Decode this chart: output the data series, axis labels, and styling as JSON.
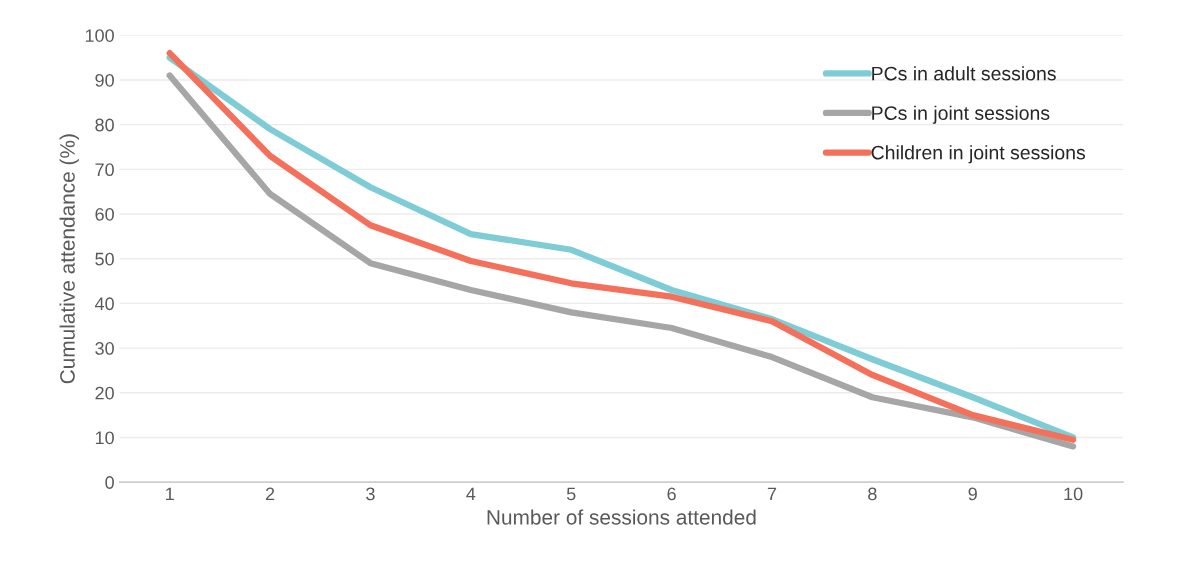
{
  "chart_data": {
    "type": "line",
    "xlabel": "Number of sessions attended",
    "ylabel": "Cumulative attendance (%)",
    "categories": [
      "1",
      "2",
      "3",
      "4",
      "5",
      "6",
      "7",
      "8",
      "9",
      "10"
    ],
    "series": [
      {
        "name": "PCs in adult sessions",
        "color": "#7ecdd6",
        "values": [
          95,
          79,
          66,
          55.5,
          52,
          43,
          36.5,
          27.5,
          19,
          10
        ]
      },
      {
        "name": "PCs in joint sessions",
        "color": "#a6a6a6",
        "values": [
          91,
          64.5,
          49,
          43,
          38,
          34.5,
          28,
          19,
          14.5,
          8
        ]
      },
      {
        "name": "Children in joint sessions",
        "color": "#f4705a",
        "values": [
          96,
          73,
          57.5,
          49.5,
          44.5,
          41.5,
          36,
          24,
          15,
          9.5
        ]
      }
    ],
    "ylim": [
      0,
      100
    ],
    "yticks": [
      0,
      10,
      20,
      30,
      40,
      50,
      60,
      70,
      80,
      90,
      100
    ],
    "grid": "y",
    "legend": "top right",
    "marker": "none",
    "line_style": "solid"
  }
}
